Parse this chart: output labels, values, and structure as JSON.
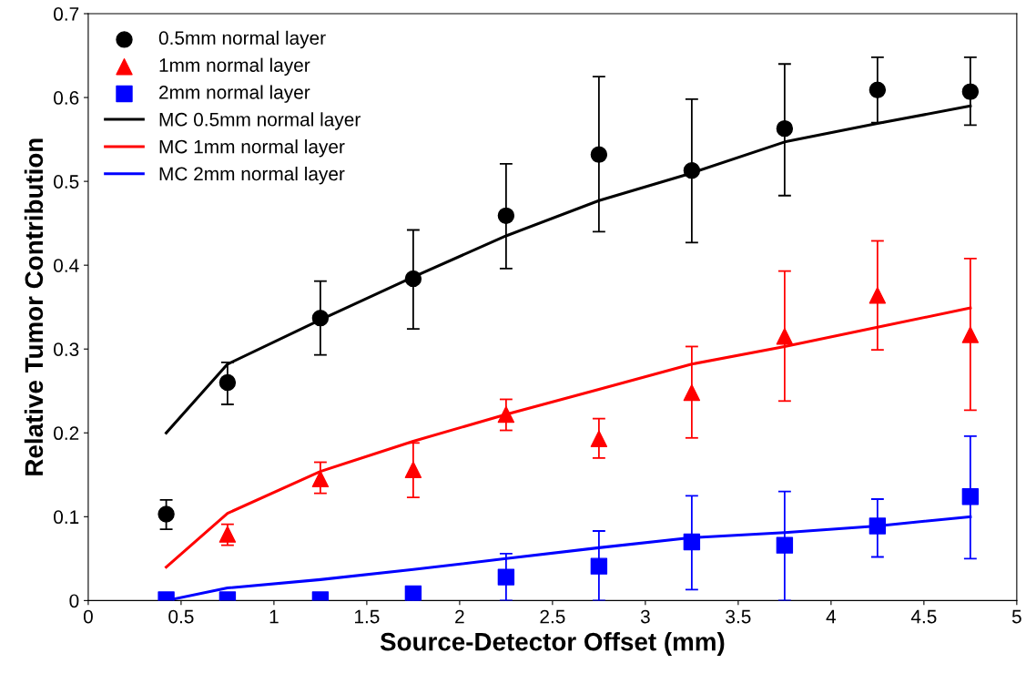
{
  "chart_data": {
    "type": "scatter",
    "xlabel": "Source-Detector Offset (mm)",
    "ylabel": "Relative Tumor Contribution",
    "xlim": [
      0,
      5
    ],
    "xticks": [
      0,
      0.5,
      1,
      1.5,
      2,
      2.5,
      3,
      3.5,
      4,
      4.5,
      5
    ],
    "ylim": [
      0,
      0.7
    ],
    "yticks": [
      0,
      0.1,
      0.2,
      0.3,
      0.4,
      0.5,
      0.6,
      0.7
    ],
    "grid": false,
    "legend": "top left",
    "series": [
      {
        "name": "0.5mm normal layer",
        "marker": "circle",
        "color": "#000000",
        "x": [
          0.42,
          0.75,
          1.25,
          1.75,
          2.25,
          2.75,
          3.25,
          3.75,
          4.25,
          4.75
        ],
        "values": [
          0.103,
          0.26,
          0.337,
          0.384,
          0.459,
          0.532,
          0.513,
          0.563,
          0.609,
          0.607
        ],
        "errors": [
          [
            0.085,
            0.12
          ],
          [
            0.234,
            0.284
          ],
          [
            0.293,
            0.381
          ],
          [
            0.324,
            0.442
          ],
          [
            0.396,
            0.521
          ],
          [
            0.44,
            0.625
          ],
          [
            0.427,
            0.598
          ],
          [
            0.483,
            0.64
          ],
          [
            0.57,
            0.648
          ],
          [
            0.567,
            0.648
          ]
        ]
      },
      {
        "name": "1mm normal layer",
        "marker": "triangle",
        "color": "#ff0000",
        "x": [
          0.75,
          1.25,
          1.75,
          2.25,
          2.75,
          3.25,
          3.75,
          4.25,
          4.75
        ],
        "values": [
          0.079,
          0.145,
          0.156,
          0.222,
          0.193,
          0.248,
          0.315,
          0.364,
          0.317
        ],
        "errors": [
          [
            0.066,
            0.091
          ],
          [
            0.128,
            0.165
          ],
          [
            0.123,
            0.188
          ],
          [
            0.203,
            0.24
          ],
          [
            0.17,
            0.217
          ],
          [
            0.194,
            0.303
          ],
          [
            0.238,
            0.393
          ],
          [
            0.299,
            0.429
          ],
          [
            0.227,
            0.408
          ]
        ]
      },
      {
        "name": "2mm normal layer",
        "marker": "square",
        "color": "#0000ff",
        "x": [
          0.42,
          0.75,
          1.25,
          1.75,
          2.25,
          2.75,
          3.25,
          3.75,
          4.25,
          4.75
        ],
        "values": [
          0.001,
          0.001,
          0.001,
          0.008,
          0.028,
          0.041,
          0.07,
          0.066,
          0.089,
          0.124
        ],
        "errors": [
          null,
          null,
          null,
          [
            0,
            0.016
          ],
          [
            0,
            0.056
          ],
          [
            0,
            0.083
          ],
          [
            0.013,
            0.125
          ],
          [
            0,
            0.13
          ],
          [
            0.052,
            0.121
          ],
          [
            0.05,
            0.196
          ]
        ]
      },
      {
        "name": "MC 0.5mm normal layer",
        "type": "line",
        "marker": "none",
        "color": "#000000",
        "x": [
          0.42,
          0.75,
          1.25,
          1.75,
          2.25,
          2.75,
          3.25,
          3.75,
          4.25,
          4.75
        ],
        "values": [
          0.2,
          0.282,
          0.335,
          0.386,
          0.435,
          0.477,
          0.51,
          0.547,
          0.569,
          0.59
        ]
      },
      {
        "name": "MC 1mm normal layer",
        "type": "line",
        "marker": "none",
        "color": "#ff0000",
        "x": [
          0.42,
          0.75,
          1.25,
          1.75,
          2.25,
          2.75,
          3.25,
          3.75,
          4.25,
          4.75
        ],
        "values": [
          0.04,
          0.104,
          0.154,
          0.19,
          0.222,
          0.252,
          0.282,
          0.303,
          0.326,
          0.349
        ]
      },
      {
        "name": "MC 2mm normal layer",
        "type": "line",
        "marker": "none",
        "color": "#0000ff",
        "x": [
          0.42,
          0.75,
          1.25,
          1.75,
          2.25,
          2.75,
          3.25,
          3.75,
          4.25,
          4.75
        ],
        "values": [
          0.0,
          0.015,
          0.025,
          0.037,
          0.05,
          0.063,
          0.075,
          0.081,
          0.089,
          0.1
        ]
      }
    ]
  }
}
